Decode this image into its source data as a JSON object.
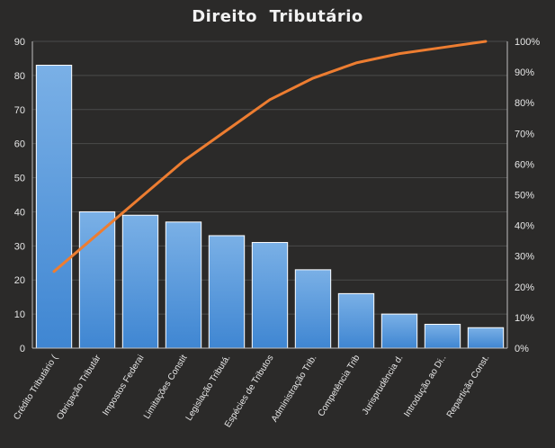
{
  "chart_data": {
    "type": "bar",
    "title": "Direito  Tributário",
    "categories": [
      "Crédito Tributário (",
      "Obrigação Tributár",
      "Impostos Federai",
      "Limitações Constit",
      "Legislação Tributá.",
      "Espécies de Tributos",
      "Administração Trib.",
      "Competência Trib",
      "Jurisprudência d.",
      "Introdução ao Di..",
      "Repartição Const."
    ],
    "series": [
      {
        "type": "bar",
        "values": [
          83,
          40,
          39,
          37,
          33,
          31,
          23,
          16,
          10,
          7,
          6
        ]
      },
      {
        "type": "line",
        "axis": "secondary",
        "values": [
          0.25,
          0.37,
          0.49,
          0.61,
          0.71,
          0.81,
          0.88,
          0.93,
          0.96,
          0.98,
          1.0
        ]
      }
    ],
    "y_ticks": [
      "0",
      "10",
      "20",
      "30",
      "40",
      "50",
      "60",
      "70",
      "80",
      "90"
    ],
    "y2_ticks": [
      "0%",
      "10%",
      "20%",
      "30%",
      "40%",
      "50%",
      "60%",
      "70%",
      "80%",
      "90%",
      "100%"
    ],
    "ylim": [
      0,
      90
    ],
    "y2lim": [
      0,
      1
    ],
    "grid": true,
    "legend": "none",
    "colors": {
      "background": "#2b2a29",
      "bar_top": "#7ab0e6",
      "bar_bottom": "#3f86d2",
      "bar_border": "#ffffff",
      "line": "#ed7d31",
      "grid": "#4a4a4a",
      "axis": "#bfbfbf",
      "text": "#e6e6e6",
      "title": "#f2f2f2"
    }
  }
}
